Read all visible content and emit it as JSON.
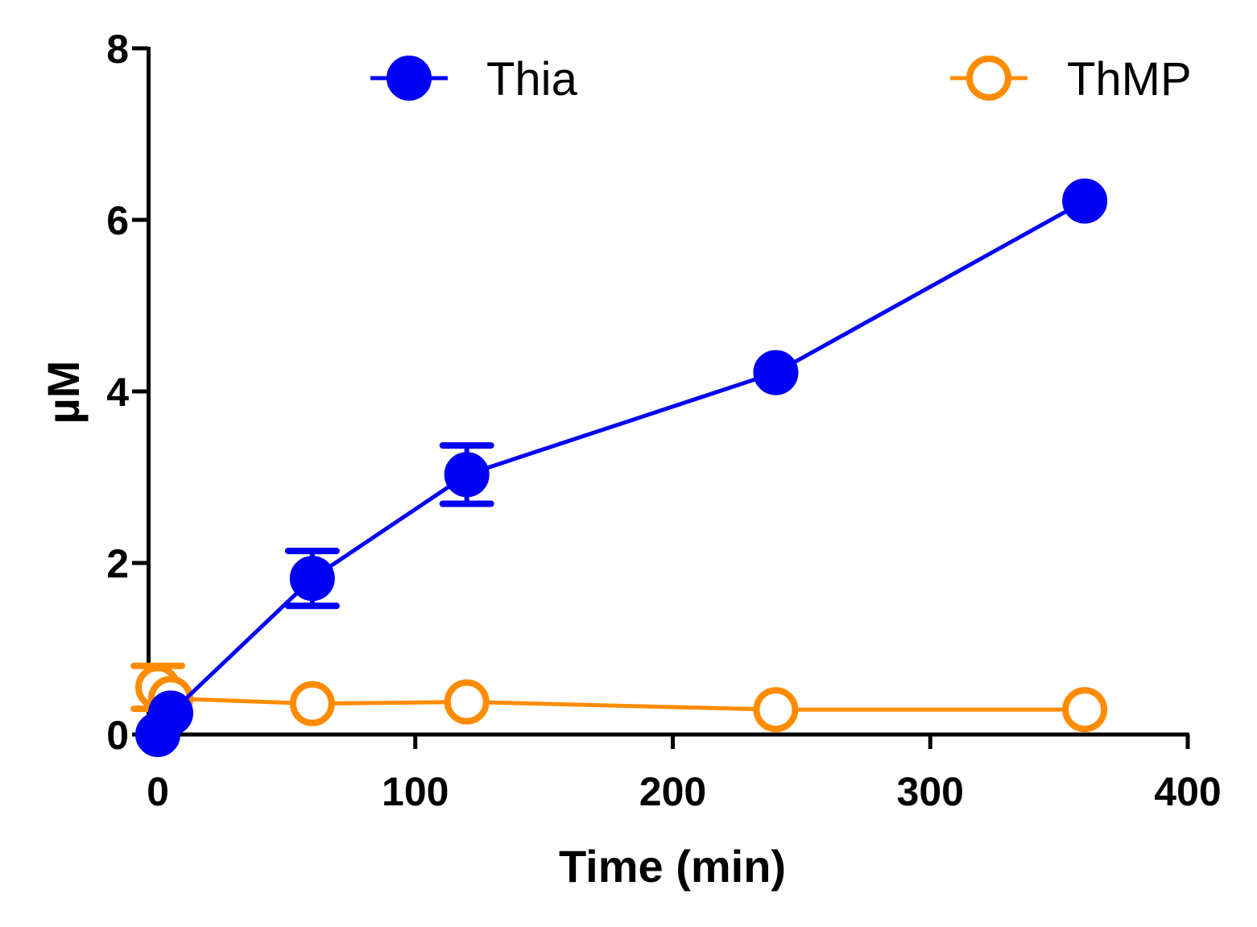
{
  "chart_data": {
    "type": "line",
    "xlabel": "Time (min)",
    "ylabel": "µM",
    "xlim": [
      0,
      400
    ],
    "ylim": [
      0,
      8
    ],
    "xticks": [
      0,
      100,
      200,
      300,
      400
    ],
    "yticks": [
      0,
      2,
      4,
      6,
      8
    ],
    "grid": false,
    "legend_position": "top",
    "series": [
      {
        "name": "Thia",
        "color": "#0000f5",
        "marker": "filled-circle",
        "x": [
          0,
          5,
          60,
          120,
          240,
          360
        ],
        "y": [
          0.0,
          0.25,
          1.82,
          3.03,
          4.22,
          6.22
        ],
        "yerr": [
          0,
          0,
          0.32,
          0.34,
          0,
          0
        ]
      },
      {
        "name": "ThMP",
        "color": "#ff8c00",
        "marker": "open-circle",
        "x": [
          0,
          5,
          60,
          120,
          240,
          360
        ],
        "y": [
          0.55,
          0.42,
          0.36,
          0.38,
          0.29,
          0.29
        ],
        "yerr": [
          0.25,
          0,
          0,
          0,
          0,
          0
        ]
      }
    ]
  }
}
